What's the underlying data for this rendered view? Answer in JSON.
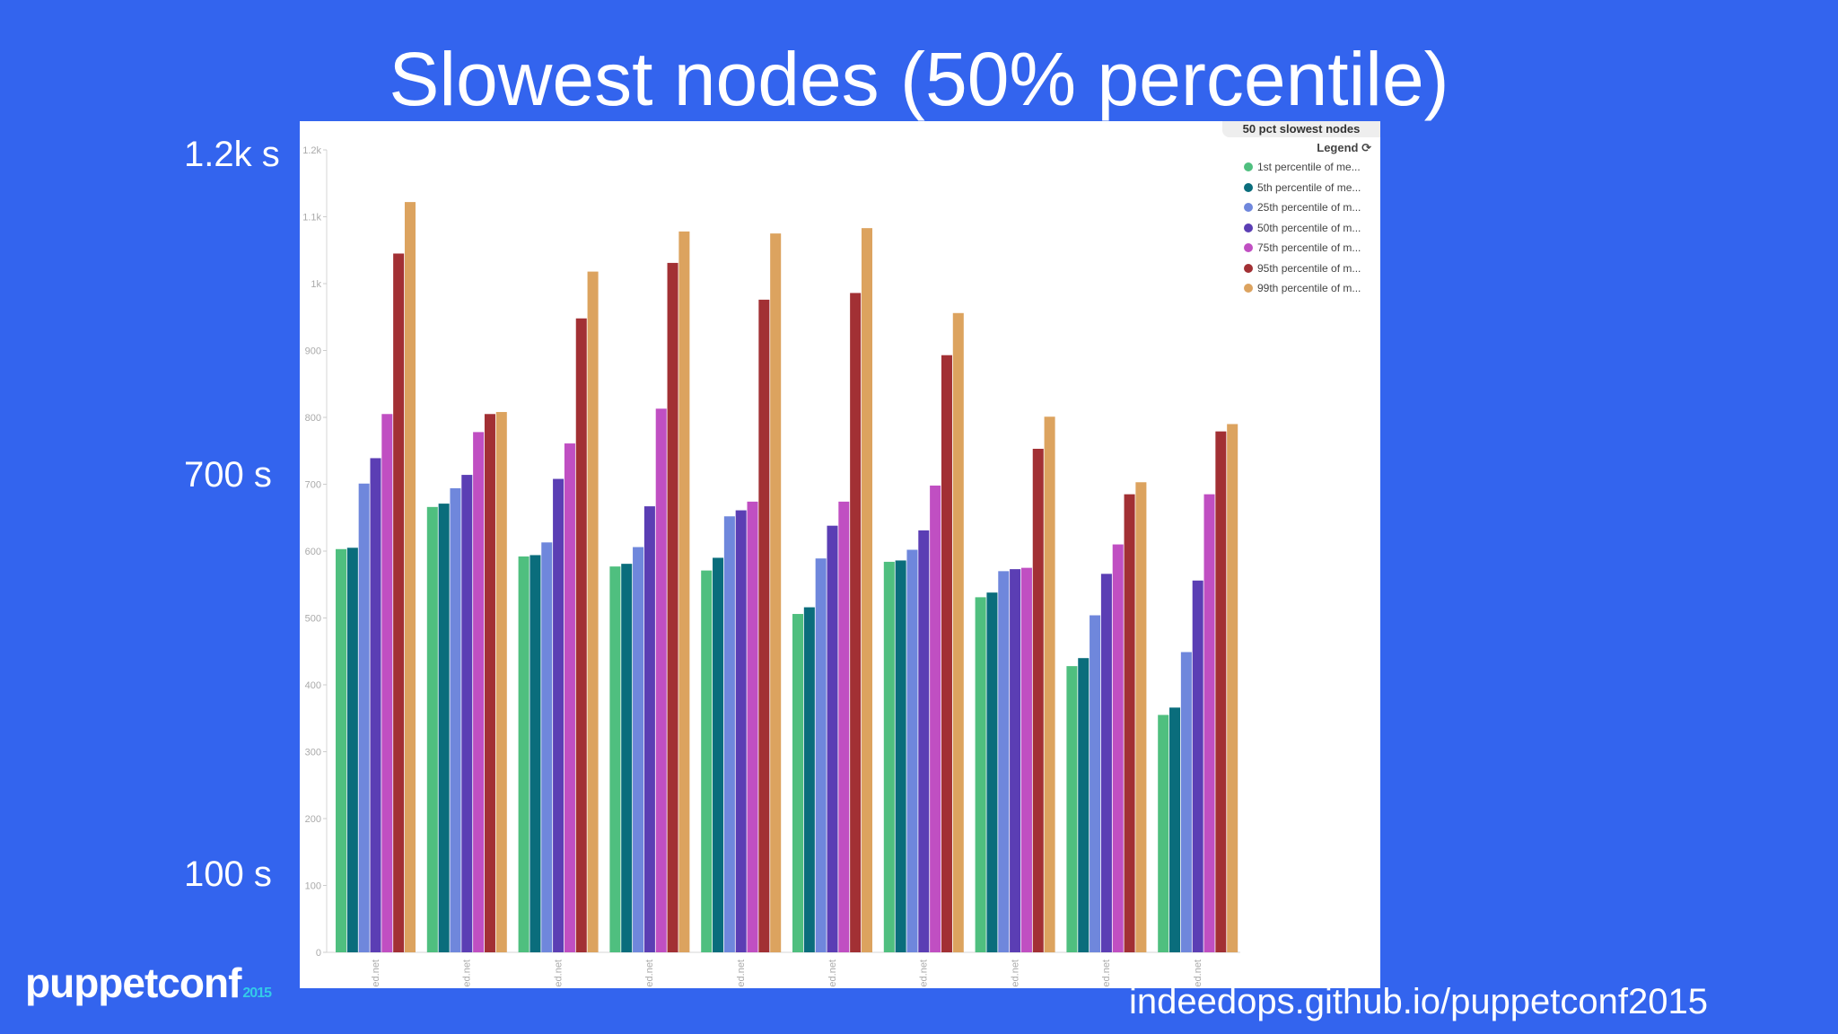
{
  "slide": {
    "title": "Slowest nodes (50% percentile)",
    "side_labels": [
      "1.2k s",
      "700 s",
      "100 s"
    ],
    "footer_url": "indeedops.github.io/puppetconf2015",
    "logo": {
      "text": "puppetconf",
      "year": "2015"
    }
  },
  "chart_data": {
    "type": "bar",
    "title": "50 pct slowest nodes",
    "legend_toggle": "Legend ⟳",
    "legend_position": "top-right",
    "categories": [
      "ed.net",
      "ed.net",
      "ed.net",
      "ed.net",
      "ed.net",
      "ed.net",
      "ed.net",
      "ed.net",
      "ed.net",
      "ed.net"
    ],
    "ylim": [
      0,
      1200
    ],
    "yticks": [
      0,
      100,
      200,
      300,
      400,
      500,
      600,
      700,
      800,
      900,
      1000,
      1100,
      1200
    ],
    "ytick_labels": [
      "0",
      "100",
      "200",
      "300",
      "400",
      "500",
      "600",
      "700",
      "800",
      "900",
      "1k",
      "1.1k",
      "1.2k"
    ],
    "grid": false,
    "series": [
      {
        "name": "1st percentile of me...",
        "color": "#4fbf7f",
        "values": [
          603,
          666,
          592,
          577,
          571,
          506,
          584,
          531,
          428,
          355
        ]
      },
      {
        "name": "5th percentile of me...",
        "color": "#0a6d7c",
        "values": [
          605,
          671,
          594,
          581,
          590,
          516,
          586,
          538,
          440,
          366
        ]
      },
      {
        "name": "25th percentile of m...",
        "color": "#6f87dc",
        "values": [
          701,
          694,
          613,
          606,
          652,
          589,
          602,
          570,
          504,
          449
        ]
      },
      {
        "name": "50th percentile of m...",
        "color": "#5b3eb4",
        "values": [
          739,
          714,
          708,
          667,
          661,
          638,
          631,
          573,
          566,
          556
        ]
      },
      {
        "name": "75th percentile of m...",
        "color": "#c04fc2",
        "values": [
          805,
          778,
          761,
          813,
          674,
          674,
          698,
          575,
          610,
          685
        ]
      },
      {
        "name": "95th percentile of m...",
        "color": "#a23034",
        "values": [
          1045,
          805,
          948,
          1031,
          976,
          986,
          893,
          753,
          685,
          779
        ]
      },
      {
        "name": "99th percentile of m...",
        "color": "#dca35f",
        "values": [
          1122,
          808,
          1018,
          1078,
          1075,
          1083,
          956,
          801,
          703,
          790
        ]
      }
    ]
  }
}
